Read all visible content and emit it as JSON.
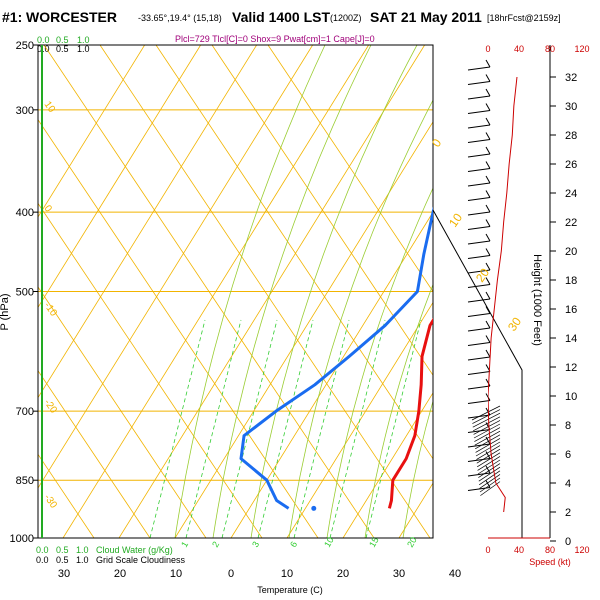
{
  "header": {
    "prefix": "#1:",
    "station": "WORCESTER",
    "coords": "-33.65°,19.4° (15,18)",
    "valid": "Valid 1400 LST",
    "utc": "(1200Z)",
    "date": "SAT 21 May 2011",
    "forecast": "[18hrFcst@2159z]",
    "indices": "Plcl=729 Tlcl[C]=0 Shox=9 Pwat[cm]=1 Cape[J]=0"
  },
  "labels": {
    "pressure_axis": "P (hPa)",
    "temperature_axis": "Temperature (C)",
    "height_axis": "Height (1000 Feet)",
    "speed_label": "Speed (kt)",
    "cloud_water": "Cloud Water (g/Kg)",
    "grid_cloudiness": "Grid Scale Cloudiness",
    "cw_ticks": [
      "0.0",
      "0.5",
      "1.0"
    ],
    "cw_ticks_black": [
      "0.0",
      "0.5",
      "1.0"
    ],
    "speed_ticks": [
      "0",
      "40",
      "80",
      "120"
    ]
  },
  "colors": {
    "isobar": "#f2b400",
    "isotherm": "#f2b400",
    "dry_adiabat": "#f2b400",
    "moist_adiabat": "#9acd32",
    "mixing_ratio": "#32cd32",
    "temperature": "#e81010",
    "dewpoint": "#1a6cf0",
    "speed_profile": "#cc0000",
    "title": "#000000",
    "indices": "#a0007a"
  },
  "chart_data": {
    "type": "line",
    "title": "#1: WORCESTER",
    "xlabel": "Temperature (C)",
    "ylabel": "P (hPa)",
    "pressure_ticks": [
      250,
      300,
      400,
      500,
      700,
      850,
      1000
    ],
    "temperature_ticks": [
      30,
      20,
      10,
      0,
      10,
      20,
      30,
      40
    ],
    "height_ticks": [
      0,
      2,
      4,
      6,
      8,
      10,
      12,
      14,
      16,
      18,
      20,
      22,
      24,
      26,
      28,
      30,
      32
    ],
    "dry_adiabat_labels": [
      "10",
      "0",
      "-10",
      "-20",
      "-30"
    ],
    "theta_labels": [
      "0",
      "10",
      "20",
      "30"
    ],
    "mixing_ratio_labels": [
      "1",
      "2",
      "3",
      "6",
      "10",
      "15",
      "20"
    ],
    "series": [
      {
        "name": "Temperature",
        "points": [
          [
            270,
            -2
          ],
          [
            300,
            1
          ],
          [
            350,
            6
          ],
          [
            400,
            9
          ],
          [
            450,
            11
          ],
          [
            500,
            12
          ],
          [
            550,
            12
          ],
          [
            600,
            14
          ],
          [
            650,
            17
          ],
          [
            700,
            19.5
          ],
          [
            750,
            21.5
          ],
          [
            800,
            22.5
          ],
          [
            850,
            22.5
          ],
          [
            900,
            24.5
          ],
          [
            920,
            25
          ]
        ]
      },
      {
        "name": "Dew point",
        "points": [
          [
            270,
            -8
          ],
          [
            300,
            -7
          ],
          [
            350,
            -3
          ],
          [
            400,
            0
          ],
          [
            450,
            3
          ],
          [
            500,
            6
          ],
          [
            550,
            4
          ],
          [
            600,
            1
          ],
          [
            650,
            -2
          ],
          [
            700,
            -6
          ],
          [
            750,
            -9
          ],
          [
            800,
            -7
          ],
          [
            850,
            0
          ],
          [
            900,
            4
          ],
          [
            920,
            7
          ]
        ]
      },
      {
        "name": "Surface dew point",
        "points": [
          [
            920,
            11.5
          ]
        ]
      }
    ],
    "speed_profile_kt": [
      [
        32,
        37
      ],
      [
        30,
        33
      ],
      [
        28,
        31
      ],
      [
        26,
        27
      ],
      [
        24,
        24
      ],
      [
        22,
        20
      ],
      [
        20,
        17
      ],
      [
        18,
        12
      ],
      [
        16,
        8
      ],
      [
        14,
        4
      ],
      [
        12,
        2
      ],
      [
        10,
        0
      ],
      [
        8,
        1
      ],
      [
        6,
        4
      ],
      [
        4,
        10
      ],
      [
        3,
        22
      ],
      [
        2,
        20
      ]
    ]
  }
}
